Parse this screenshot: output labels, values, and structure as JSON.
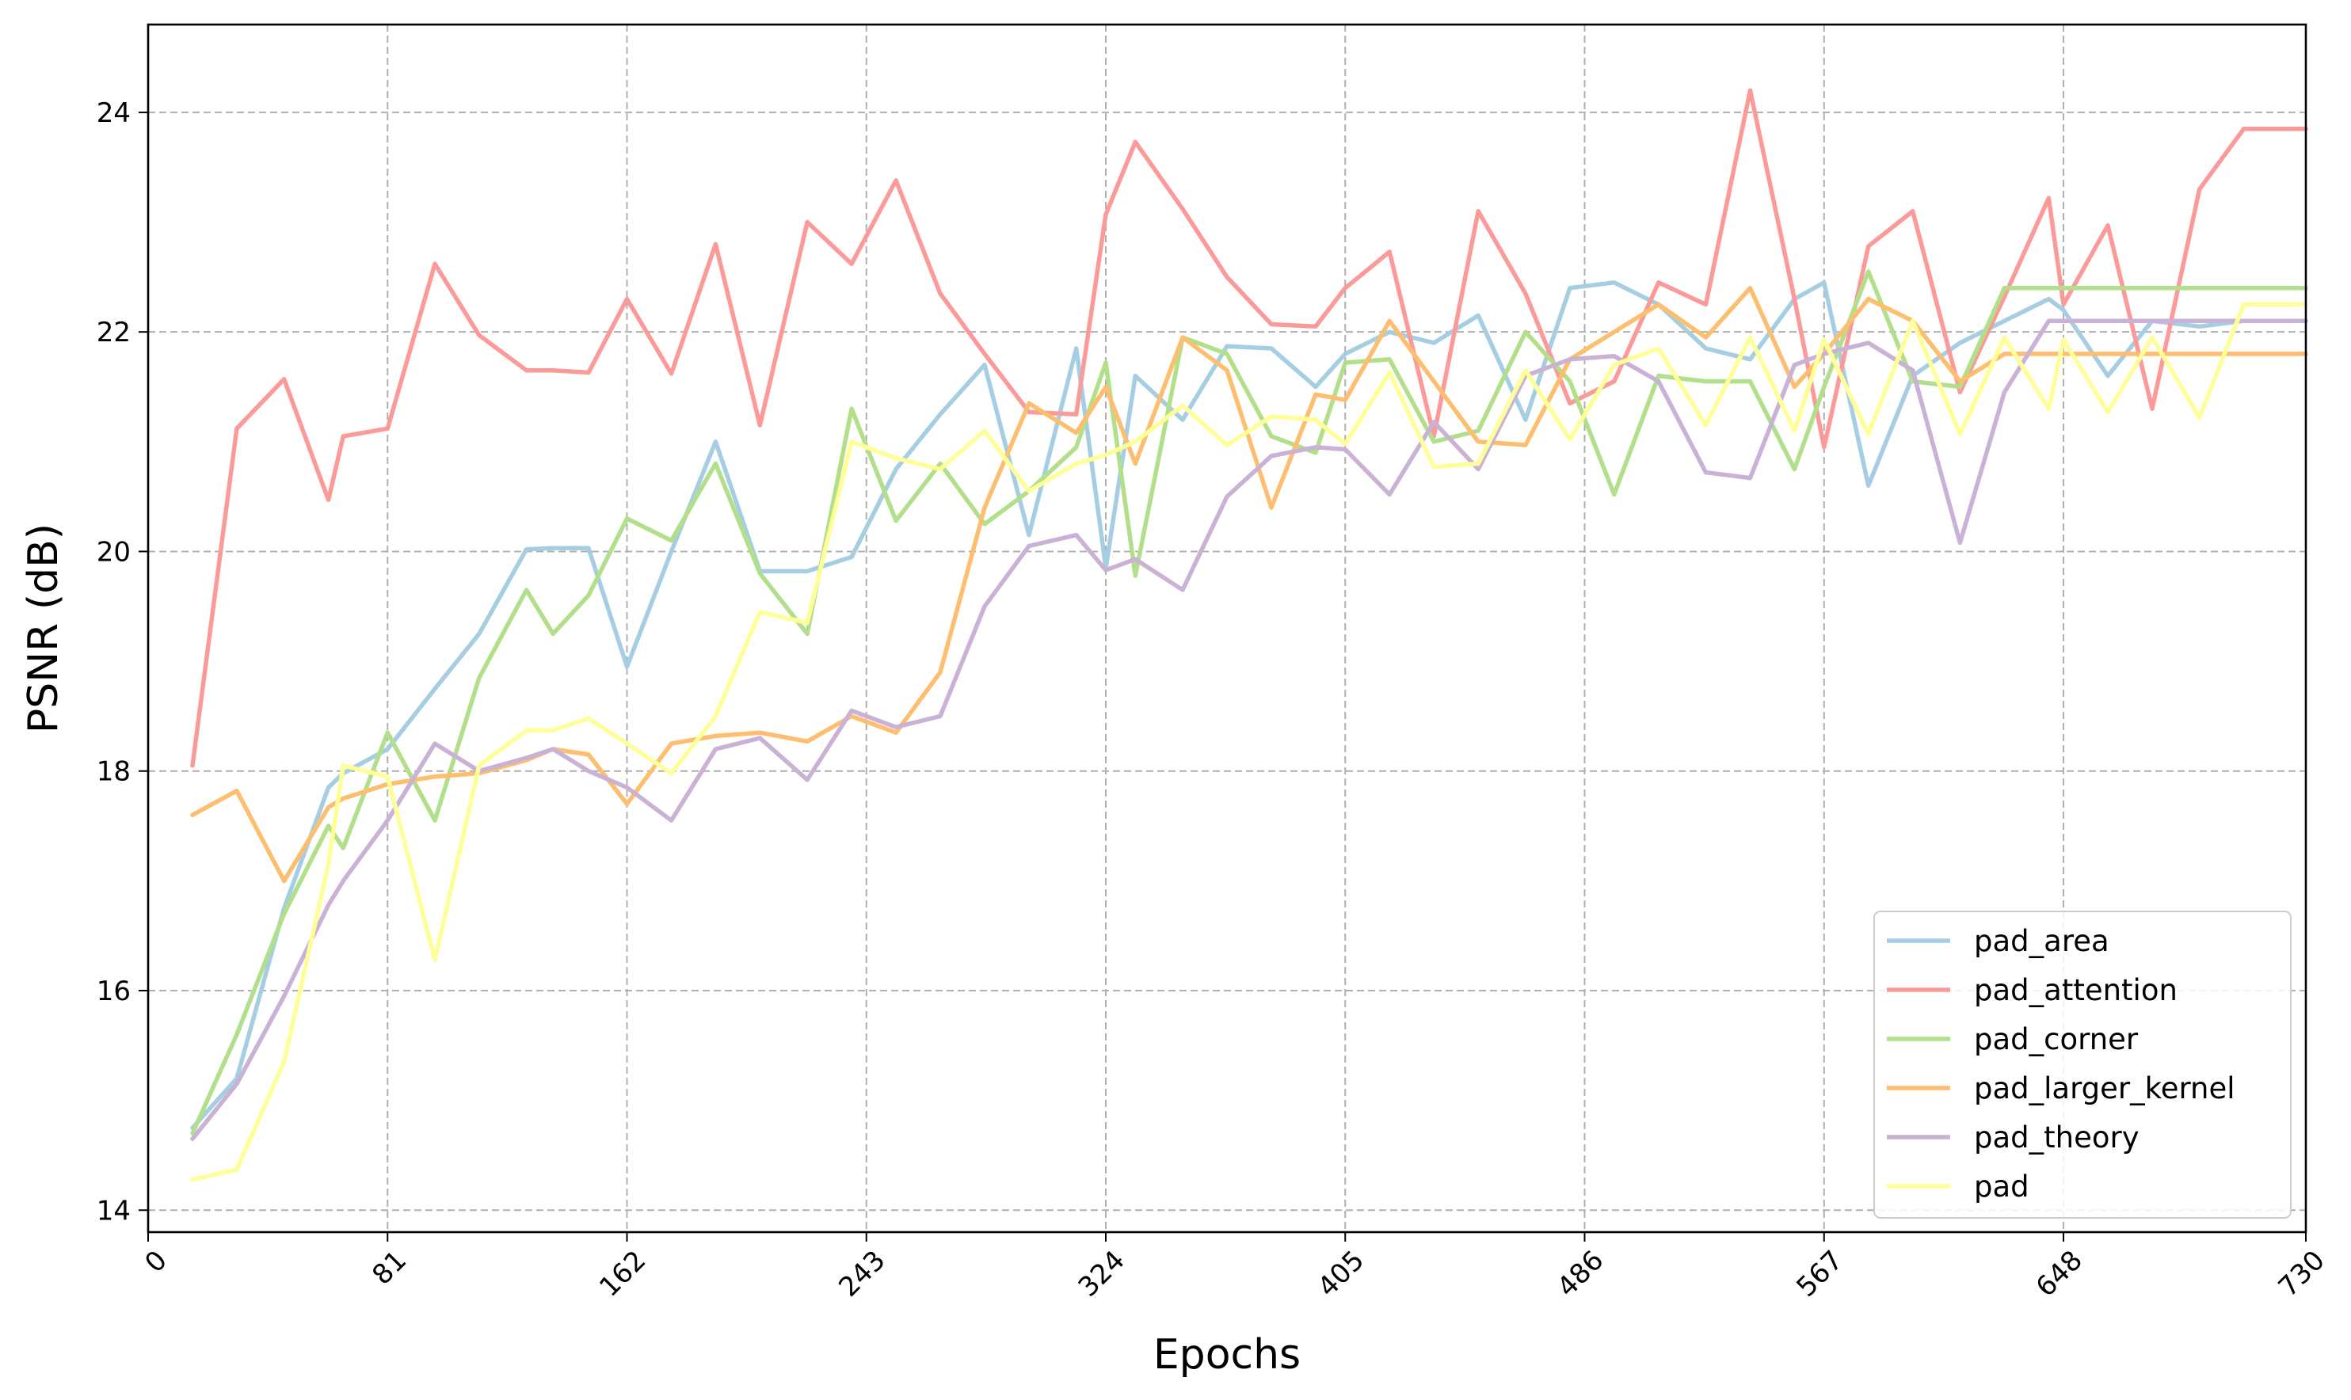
{
  "chart_data": {
    "type": "line",
    "title": "",
    "xlabel": "Epochs",
    "ylabel": "PSNR (dB)",
    "xlim": [
      0,
      730
    ],
    "ylim": [
      13.8,
      24.8
    ],
    "x_ticks": [
      0,
      81,
      162,
      243,
      324,
      405,
      486,
      567,
      648,
      730
    ],
    "x_tick_labels": [
      "0",
      "81",
      "162",
      "243",
      "324",
      "405",
      "486",
      "567",
      "648",
      "730"
    ],
    "y_ticks": [
      14,
      16,
      18,
      20,
      22,
      24
    ],
    "y_tick_labels": [
      "14",
      "16",
      "18",
      "20",
      "22",
      "24"
    ],
    "grid": true,
    "legend_position": "lower-right",
    "x": [
      15,
      30,
      46,
      61,
      66,
      81,
      97,
      112,
      128,
      137,
      149,
      162,
      177,
      192,
      207,
      223,
      238,
      253,
      268,
      283,
      298,
      314,
      324,
      334,
      350,
      365,
      380,
      395,
      405,
      420,
      435,
      450,
      466,
      481,
      496,
      511,
      527,
      542,
      557,
      567,
      582,
      597,
      613,
      628,
      643,
      648,
      663,
      678,
      694,
      709,
      724,
      730
    ],
    "series": [
      {
        "name": "pad_area",
        "color": "#a6cee3",
        "values": [
          14.75,
          15.2,
          16.75,
          17.85,
          17.98,
          18.2,
          18.75,
          19.25,
          20.02,
          20.03,
          20.03,
          18.95,
          20.0,
          21.0,
          19.82,
          19.82,
          19.95,
          20.75,
          21.25,
          21.7,
          20.15,
          21.85,
          19.85,
          21.6,
          21.2,
          21.87,
          21.85,
          21.5,
          21.8,
          22.0,
          21.9,
          22.15,
          21.2,
          22.4,
          22.45,
          22.25,
          21.85,
          21.75,
          22.3,
          22.45,
          20.6,
          21.6,
          21.9,
          22.1,
          22.3,
          22.2,
          21.6,
          22.1,
          22.05,
          22.1,
          22.1,
          22.1
        ]
      },
      {
        "name": "pad_attention",
        "color": "#fb9a99",
        "values": [
          18.05,
          21.12,
          21.57,
          20.47,
          21.05,
          21.12,
          22.62,
          21.97,
          21.65,
          21.65,
          21.63,
          22.3,
          21.62,
          22.8,
          21.15,
          23.0,
          22.62,
          23.38,
          22.35,
          21.8,
          21.27,
          21.25,
          23.07,
          23.73,
          23.12,
          22.5,
          22.07,
          22.05,
          22.4,
          22.73,
          21.05,
          23.1,
          22.35,
          21.35,
          21.55,
          22.45,
          22.25,
          24.2,
          22.3,
          20.95,
          22.78,
          23.1,
          21.45,
          22.32,
          23.22,
          22.25,
          22.97,
          21.3,
          23.3,
          23.85,
          23.85,
          23.85
        ]
      },
      {
        "name": "pad_corner",
        "color": "#b2df8a",
        "values": [
          14.7,
          15.6,
          16.7,
          17.5,
          17.3,
          18.35,
          17.55,
          18.85,
          19.65,
          19.25,
          19.6,
          20.3,
          20.1,
          20.8,
          19.8,
          19.25,
          21.3,
          20.28,
          20.8,
          20.25,
          20.55,
          20.95,
          21.72,
          19.78,
          21.95,
          21.8,
          21.05,
          20.9,
          21.72,
          21.75,
          21.0,
          21.1,
          22.0,
          21.55,
          20.52,
          21.6,
          21.55,
          21.55,
          20.75,
          21.5,
          22.55,
          21.55,
          21.5,
          22.4,
          22.4,
          22.4,
          22.4,
          22.4,
          22.4,
          22.4,
          22.4,
          22.4
        ]
      },
      {
        "name": "pad_larger_kernel",
        "color": "#fdbf6f",
        "values": [
          17.6,
          17.82,
          17.0,
          17.67,
          17.75,
          17.88,
          17.95,
          17.98,
          18.1,
          18.2,
          18.15,
          17.7,
          18.25,
          18.32,
          18.35,
          18.27,
          18.5,
          18.35,
          18.9,
          20.4,
          21.35,
          21.08,
          21.5,
          20.8,
          21.95,
          21.65,
          20.4,
          21.43,
          21.38,
          22.1,
          21.55,
          21.0,
          20.97,
          21.75,
          22.0,
          22.25,
          21.95,
          22.4,
          21.5,
          21.8,
          22.3,
          22.1,
          21.55,
          21.8,
          21.8,
          21.8,
          21.8,
          21.8,
          21.8,
          21.8,
          21.8,
          21.8
        ]
      },
      {
        "name": "pad_theory",
        "color": "#cab2d6",
        "values": [
          14.65,
          15.15,
          15.95,
          16.78,
          17.0,
          17.55,
          18.25,
          18.0,
          18.12,
          18.2,
          18.0,
          17.85,
          17.55,
          18.2,
          18.3,
          17.92,
          18.55,
          18.4,
          18.5,
          19.5,
          20.05,
          20.15,
          19.83,
          19.93,
          19.65,
          20.5,
          20.87,
          20.95,
          20.93,
          20.52,
          21.18,
          20.75,
          21.6,
          21.75,
          21.78,
          21.55,
          20.72,
          20.67,
          21.7,
          21.8,
          21.9,
          21.65,
          20.08,
          21.45,
          22.1,
          22.1,
          22.1,
          22.1,
          22.1,
          22.1,
          22.1,
          22.1
        ]
      },
      {
        "name": "pad",
        "color": "#ffff99",
        "values": [
          14.28,
          14.37,
          15.35,
          17.15,
          18.05,
          17.95,
          16.28,
          18.05,
          18.37,
          18.37,
          18.48,
          18.25,
          17.98,
          18.5,
          19.45,
          19.35,
          21.0,
          20.85,
          20.75,
          21.1,
          20.55,
          20.8,
          20.88,
          21.0,
          21.33,
          20.97,
          21.23,
          21.2,
          20.98,
          21.63,
          20.77,
          20.8,
          21.65,
          21.02,
          21.7,
          21.85,
          21.15,
          21.95,
          21.1,
          21.93,
          21.07,
          22.1,
          21.07,
          21.95,
          21.3,
          21.93,
          21.27,
          21.95,
          21.22,
          22.25,
          22.25,
          22.25
        ]
      }
    ]
  }
}
